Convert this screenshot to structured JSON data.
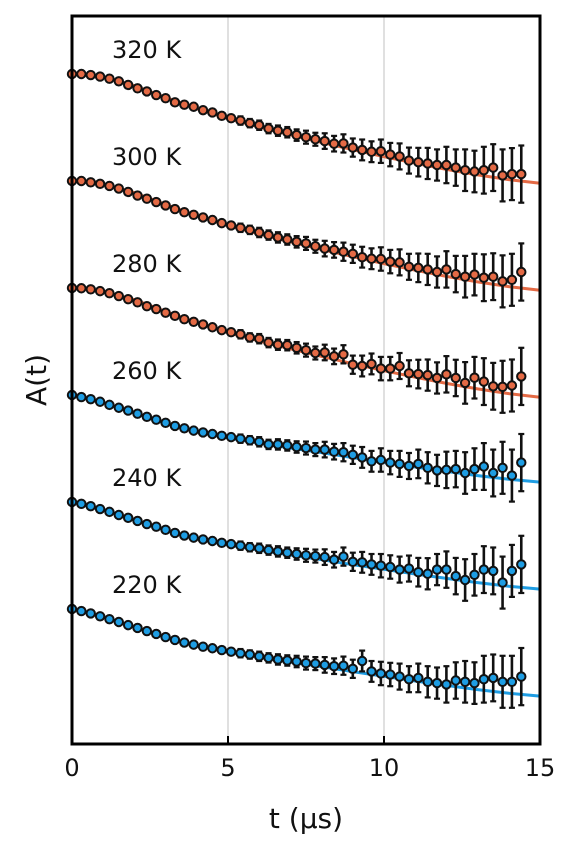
{
  "chart_data": {
    "type": "scatter",
    "xlabel": "t (μs)",
    "ylabel": "A(t)",
    "xlim": [
      0,
      15
    ],
    "xticks": [
      "0",
      "5",
      "10",
      "15"
    ],
    "grid": "vertical lines at 5 and 10",
    "y_tick_labels": "none",
    "series_offset": "vertically stacked, equal spacing",
    "x": [
      0,
      0.3,
      0.6,
      0.9,
      1.2,
      1.5,
      1.8,
      2.1,
      2.4,
      2.7,
      3.0,
      3.3,
      3.6,
      3.9,
      4.2,
      4.5,
      4.8,
      5.1,
      5.4,
      5.7,
      6.0,
      6.3,
      6.6,
      6.9,
      7.2,
      7.5,
      7.8,
      8.1,
      8.4,
      8.7,
      9.0,
      9.3,
      9.6,
      9.9,
      10.2,
      10.5,
      10.8,
      11.1,
      11.4,
      11.7,
      12.0,
      12.3,
      12.6,
      12.9,
      13.2,
      13.5,
      13.8,
      14.1,
      14.4
    ],
    "series": [
      {
        "name": "320 K",
        "color": "#e46a45",
        "fit": {
          "x": [
            0,
            1,
            2,
            3,
            4,
            5,
            6,
            7,
            8,
            9,
            10,
            11,
            12,
            13,
            14,
            15
          ],
          "y": [
            1.0,
            0.988,
            0.955,
            0.91,
            0.866,
            0.829,
            0.796,
            0.766,
            0.737,
            0.709,
            0.682,
            0.657,
            0.633,
            0.612,
            0.594,
            0.58
          ]
        },
        "y": [
          1.0,
          1.0,
          0.996,
          0.99,
          0.982,
          0.972,
          0.958,
          0.945,
          0.933,
          0.919,
          0.907,
          0.891,
          0.882,
          0.874,
          0.861,
          0.852,
          0.839,
          0.83,
          0.821,
          0.811,
          0.803,
          0.79,
          0.782,
          0.776,
          0.765,
          0.757,
          0.749,
          0.742,
          0.732,
          0.733,
          0.717,
          0.708,
          0.701,
          0.703,
          0.69,
          0.683,
          0.667,
          0.661,
          0.656,
          0.65,
          0.65,
          0.64,
          0.63,
          0.625,
          0.63,
          0.64,
          0.61,
          0.615,
          0.615
        ],
        "err": [
          0.01,
          0.01,
          0.01,
          0.01,
          0.01,
          0.01,
          0.01,
          0.01,
          0.01,
          0.01,
          0.01,
          0.01,
          0.012,
          0.012,
          0.012,
          0.015,
          0.015,
          0.015,
          0.016,
          0.016,
          0.018,
          0.018,
          0.02,
          0.02,
          0.022,
          0.025,
          0.025,
          0.03,
          0.03,
          0.035,
          0.035,
          0.04,
          0.04,
          0.045,
          0.045,
          0.05,
          0.05,
          0.055,
          0.06,
          0.06,
          0.07,
          0.07,
          0.08,
          0.08,
          0.09,
          0.09,
          0.1,
          0.1,
          0.11
        ]
      },
      {
        "name": "300 K",
        "color": "#e46a45",
        "fit": {
          "x": [
            0,
            1,
            2,
            3,
            4,
            5,
            6,
            7,
            8,
            9,
            10,
            11,
            12,
            13,
            14,
            15
          ],
          "y": [
            1.0,
            0.988,
            0.955,
            0.91,
            0.866,
            0.829,
            0.796,
            0.766,
            0.737,
            0.709,
            0.682,
            0.657,
            0.633,
            0.612,
            0.594,
            0.58
          ]
        },
        "y": [
          1.0,
          1.0,
          0.995,
          0.989,
          0.981,
          0.971,
          0.958,
          0.944,
          0.932,
          0.919,
          0.906,
          0.892,
          0.88,
          0.87,
          0.86,
          0.85,
          0.838,
          0.829,
          0.82,
          0.812,
          0.802,
          0.792,
          0.783,
          0.775,
          0.766,
          0.76,
          0.749,
          0.74,
          0.735,
          0.728,
          0.72,
          0.707,
          0.701,
          0.7,
          0.69,
          0.687,
          0.67,
          0.666,
          0.66,
          0.65,
          0.66,
          0.642,
          0.632,
          0.64,
          0.628,
          0.632,
          0.614,
          0.62,
          0.65
        ],
        "err": [
          0.01,
          0.01,
          0.01,
          0.01,
          0.01,
          0.01,
          0.01,
          0.01,
          0.01,
          0.01,
          0.01,
          0.01,
          0.012,
          0.012,
          0.012,
          0.015,
          0.015,
          0.015,
          0.016,
          0.016,
          0.018,
          0.018,
          0.02,
          0.02,
          0.022,
          0.025,
          0.025,
          0.03,
          0.03,
          0.035,
          0.035,
          0.04,
          0.04,
          0.045,
          0.045,
          0.05,
          0.05,
          0.055,
          0.06,
          0.06,
          0.07,
          0.07,
          0.08,
          0.08,
          0.09,
          0.09,
          0.1,
          0.1,
          0.11
        ]
      },
      {
        "name": "280 K",
        "color": "#e46a45",
        "fit": {
          "x": [
            0,
            1,
            2,
            3,
            4,
            5,
            6,
            7,
            8,
            9,
            10,
            11,
            12,
            13,
            14,
            15
          ],
          "y": [
            1.0,
            0.988,
            0.955,
            0.91,
            0.866,
            0.829,
            0.796,
            0.766,
            0.737,
            0.709,
            0.682,
            0.657,
            0.633,
            0.612,
            0.594,
            0.58
          ]
        },
        "y": [
          1.0,
          0.999,
          0.995,
          0.988,
          0.98,
          0.969,
          0.957,
          0.945,
          0.93,
          0.919,
          0.905,
          0.893,
          0.88,
          0.87,
          0.86,
          0.849,
          0.838,
          0.83,
          0.822,
          0.81,
          0.805,
          0.79,
          0.782,
          0.78,
          0.77,
          0.761,
          0.75,
          0.752,
          0.737,
          0.745,
          0.705,
          0.7,
          0.708,
          0.69,
          0.69,
          0.7,
          0.672,
          0.669,
          0.665,
          0.654,
          0.668,
          0.654,
          0.635,
          0.655,
          0.64,
          0.622,
          0.62,
          0.625,
          0.66
        ],
        "err": [
          0.01,
          0.01,
          0.01,
          0.01,
          0.01,
          0.01,
          0.01,
          0.01,
          0.01,
          0.01,
          0.01,
          0.01,
          0.012,
          0.012,
          0.012,
          0.015,
          0.015,
          0.015,
          0.016,
          0.016,
          0.018,
          0.018,
          0.02,
          0.02,
          0.022,
          0.025,
          0.025,
          0.03,
          0.03,
          0.035,
          0.035,
          0.04,
          0.04,
          0.045,
          0.045,
          0.05,
          0.05,
          0.055,
          0.06,
          0.06,
          0.07,
          0.07,
          0.08,
          0.08,
          0.09,
          0.09,
          0.1,
          0.1,
          0.11
        ]
      },
      {
        "name": "260 K",
        "color": "#1e9de3",
        "fit": {
          "x": [
            0,
            1,
            2,
            3,
            4,
            5,
            6,
            7,
            8,
            9,
            10,
            11,
            12,
            13,
            14,
            15
          ],
          "y": [
            1.0,
            0.971,
            0.93,
            0.89,
            0.858,
            0.835,
            0.815,
            0.796,
            0.778,
            0.759,
            0.741,
            0.723,
            0.706,
            0.69,
            0.676,
            0.665
          ]
        },
        "y": [
          1.0,
          0.992,
          0.984,
          0.974,
          0.962,
          0.951,
          0.94,
          0.928,
          0.916,
          0.905,
          0.893,
          0.881,
          0.872,
          0.863,
          0.856,
          0.85,
          0.843,
          0.838,
          0.832,
          0.826,
          0.82,
          0.81,
          0.81,
          0.806,
          0.8,
          0.796,
          0.79,
          0.79,
          0.782,
          0.78,
          0.77,
          0.76,
          0.745,
          0.75,
          0.74,
          0.735,
          0.727,
          0.735,
          0.72,
          0.71,
          0.712,
          0.715,
          0.7,
          0.715,
          0.725,
          0.7,
          0.72,
          0.69,
          0.74
        ],
        "err": [
          0.01,
          0.01,
          0.01,
          0.01,
          0.01,
          0.01,
          0.01,
          0.01,
          0.01,
          0.01,
          0.01,
          0.01,
          0.012,
          0.012,
          0.012,
          0.015,
          0.015,
          0.015,
          0.016,
          0.016,
          0.018,
          0.018,
          0.02,
          0.02,
          0.022,
          0.025,
          0.025,
          0.03,
          0.03,
          0.035,
          0.035,
          0.04,
          0.04,
          0.045,
          0.045,
          0.05,
          0.05,
          0.055,
          0.06,
          0.06,
          0.07,
          0.07,
          0.08,
          0.08,
          0.09,
          0.09,
          0.1,
          0.1,
          0.11
        ]
      },
      {
        "name": "240 K",
        "color": "#1e9de3",
        "fit": {
          "x": [
            0,
            1,
            2,
            3,
            4,
            5,
            6,
            7,
            8,
            9,
            10,
            11,
            12,
            13,
            14,
            15
          ],
          "y": [
            1.0,
            0.971,
            0.93,
            0.89,
            0.858,
            0.835,
            0.815,
            0.796,
            0.778,
            0.759,
            0.741,
            0.723,
            0.706,
            0.69,
            0.676,
            0.665
          ]
        },
        "y": [
          1.0,
          0.993,
          0.984,
          0.973,
          0.962,
          0.95,
          0.939,
          0.927,
          0.915,
          0.905,
          0.893,
          0.881,
          0.871,
          0.863,
          0.856,
          0.85,
          0.843,
          0.838,
          0.832,
          0.826,
          0.822,
          0.815,
          0.81,
          0.805,
          0.8,
          0.795,
          0.792,
          0.788,
          0.778,
          0.79,
          0.77,
          0.768,
          0.76,
          0.755,
          0.75,
          0.74,
          0.744,
          0.73,
          0.724,
          0.74,
          0.74,
          0.715,
          0.7,
          0.72,
          0.74,
          0.735,
          0.69,
          0.735,
          0.76
        ],
        "err": [
          0.01,
          0.01,
          0.01,
          0.01,
          0.01,
          0.01,
          0.01,
          0.01,
          0.01,
          0.01,
          0.01,
          0.01,
          0.012,
          0.012,
          0.012,
          0.015,
          0.015,
          0.015,
          0.016,
          0.016,
          0.018,
          0.018,
          0.02,
          0.02,
          0.022,
          0.025,
          0.025,
          0.03,
          0.03,
          0.035,
          0.035,
          0.04,
          0.04,
          0.045,
          0.045,
          0.05,
          0.05,
          0.055,
          0.06,
          0.06,
          0.07,
          0.07,
          0.08,
          0.08,
          0.09,
          0.09,
          0.1,
          0.1,
          0.11
        ]
      },
      {
        "name": "220 K",
        "color": "#1e9de3",
        "fit": {
          "x": [
            0,
            1,
            2,
            3,
            4,
            5,
            6,
            7,
            8,
            9,
            10,
            11,
            12,
            13,
            14,
            15
          ],
          "y": [
            1.0,
            0.971,
            0.93,
            0.89,
            0.858,
            0.835,
            0.815,
            0.796,
            0.778,
            0.759,
            0.741,
            0.723,
            0.706,
            0.69,
            0.676,
            0.665
          ]
        },
        "y": [
          1.0,
          0.992,
          0.983,
          0.972,
          0.961,
          0.95,
          0.938,
          0.927,
          0.915,
          0.904,
          0.892,
          0.881,
          0.871,
          0.863,
          0.855,
          0.849,
          0.842,
          0.836,
          0.83,
          0.825,
          0.818,
          0.812,
          0.806,
          0.802,
          0.798,
          0.792,
          0.79,
          0.785,
          0.78,
          0.782,
          0.77,
          0.8,
          0.76,
          0.752,
          0.748,
          0.74,
          0.73,
          0.735,
          0.72,
          0.715,
          0.71,
          0.725,
          0.72,
          0.715,
          0.73,
          0.735,
          0.72,
          0.72,
          0.74
        ],
        "err": [
          0.01,
          0.01,
          0.01,
          0.01,
          0.01,
          0.01,
          0.01,
          0.01,
          0.01,
          0.01,
          0.01,
          0.01,
          0.012,
          0.012,
          0.012,
          0.015,
          0.015,
          0.015,
          0.016,
          0.016,
          0.018,
          0.018,
          0.02,
          0.02,
          0.022,
          0.025,
          0.025,
          0.03,
          0.03,
          0.035,
          0.035,
          0.04,
          0.04,
          0.045,
          0.045,
          0.05,
          0.05,
          0.055,
          0.06,
          0.06,
          0.07,
          0.07,
          0.08,
          0.08,
          0.09,
          0.09,
          0.1,
          0.1,
          0.11
        ]
      }
    ]
  }
}
